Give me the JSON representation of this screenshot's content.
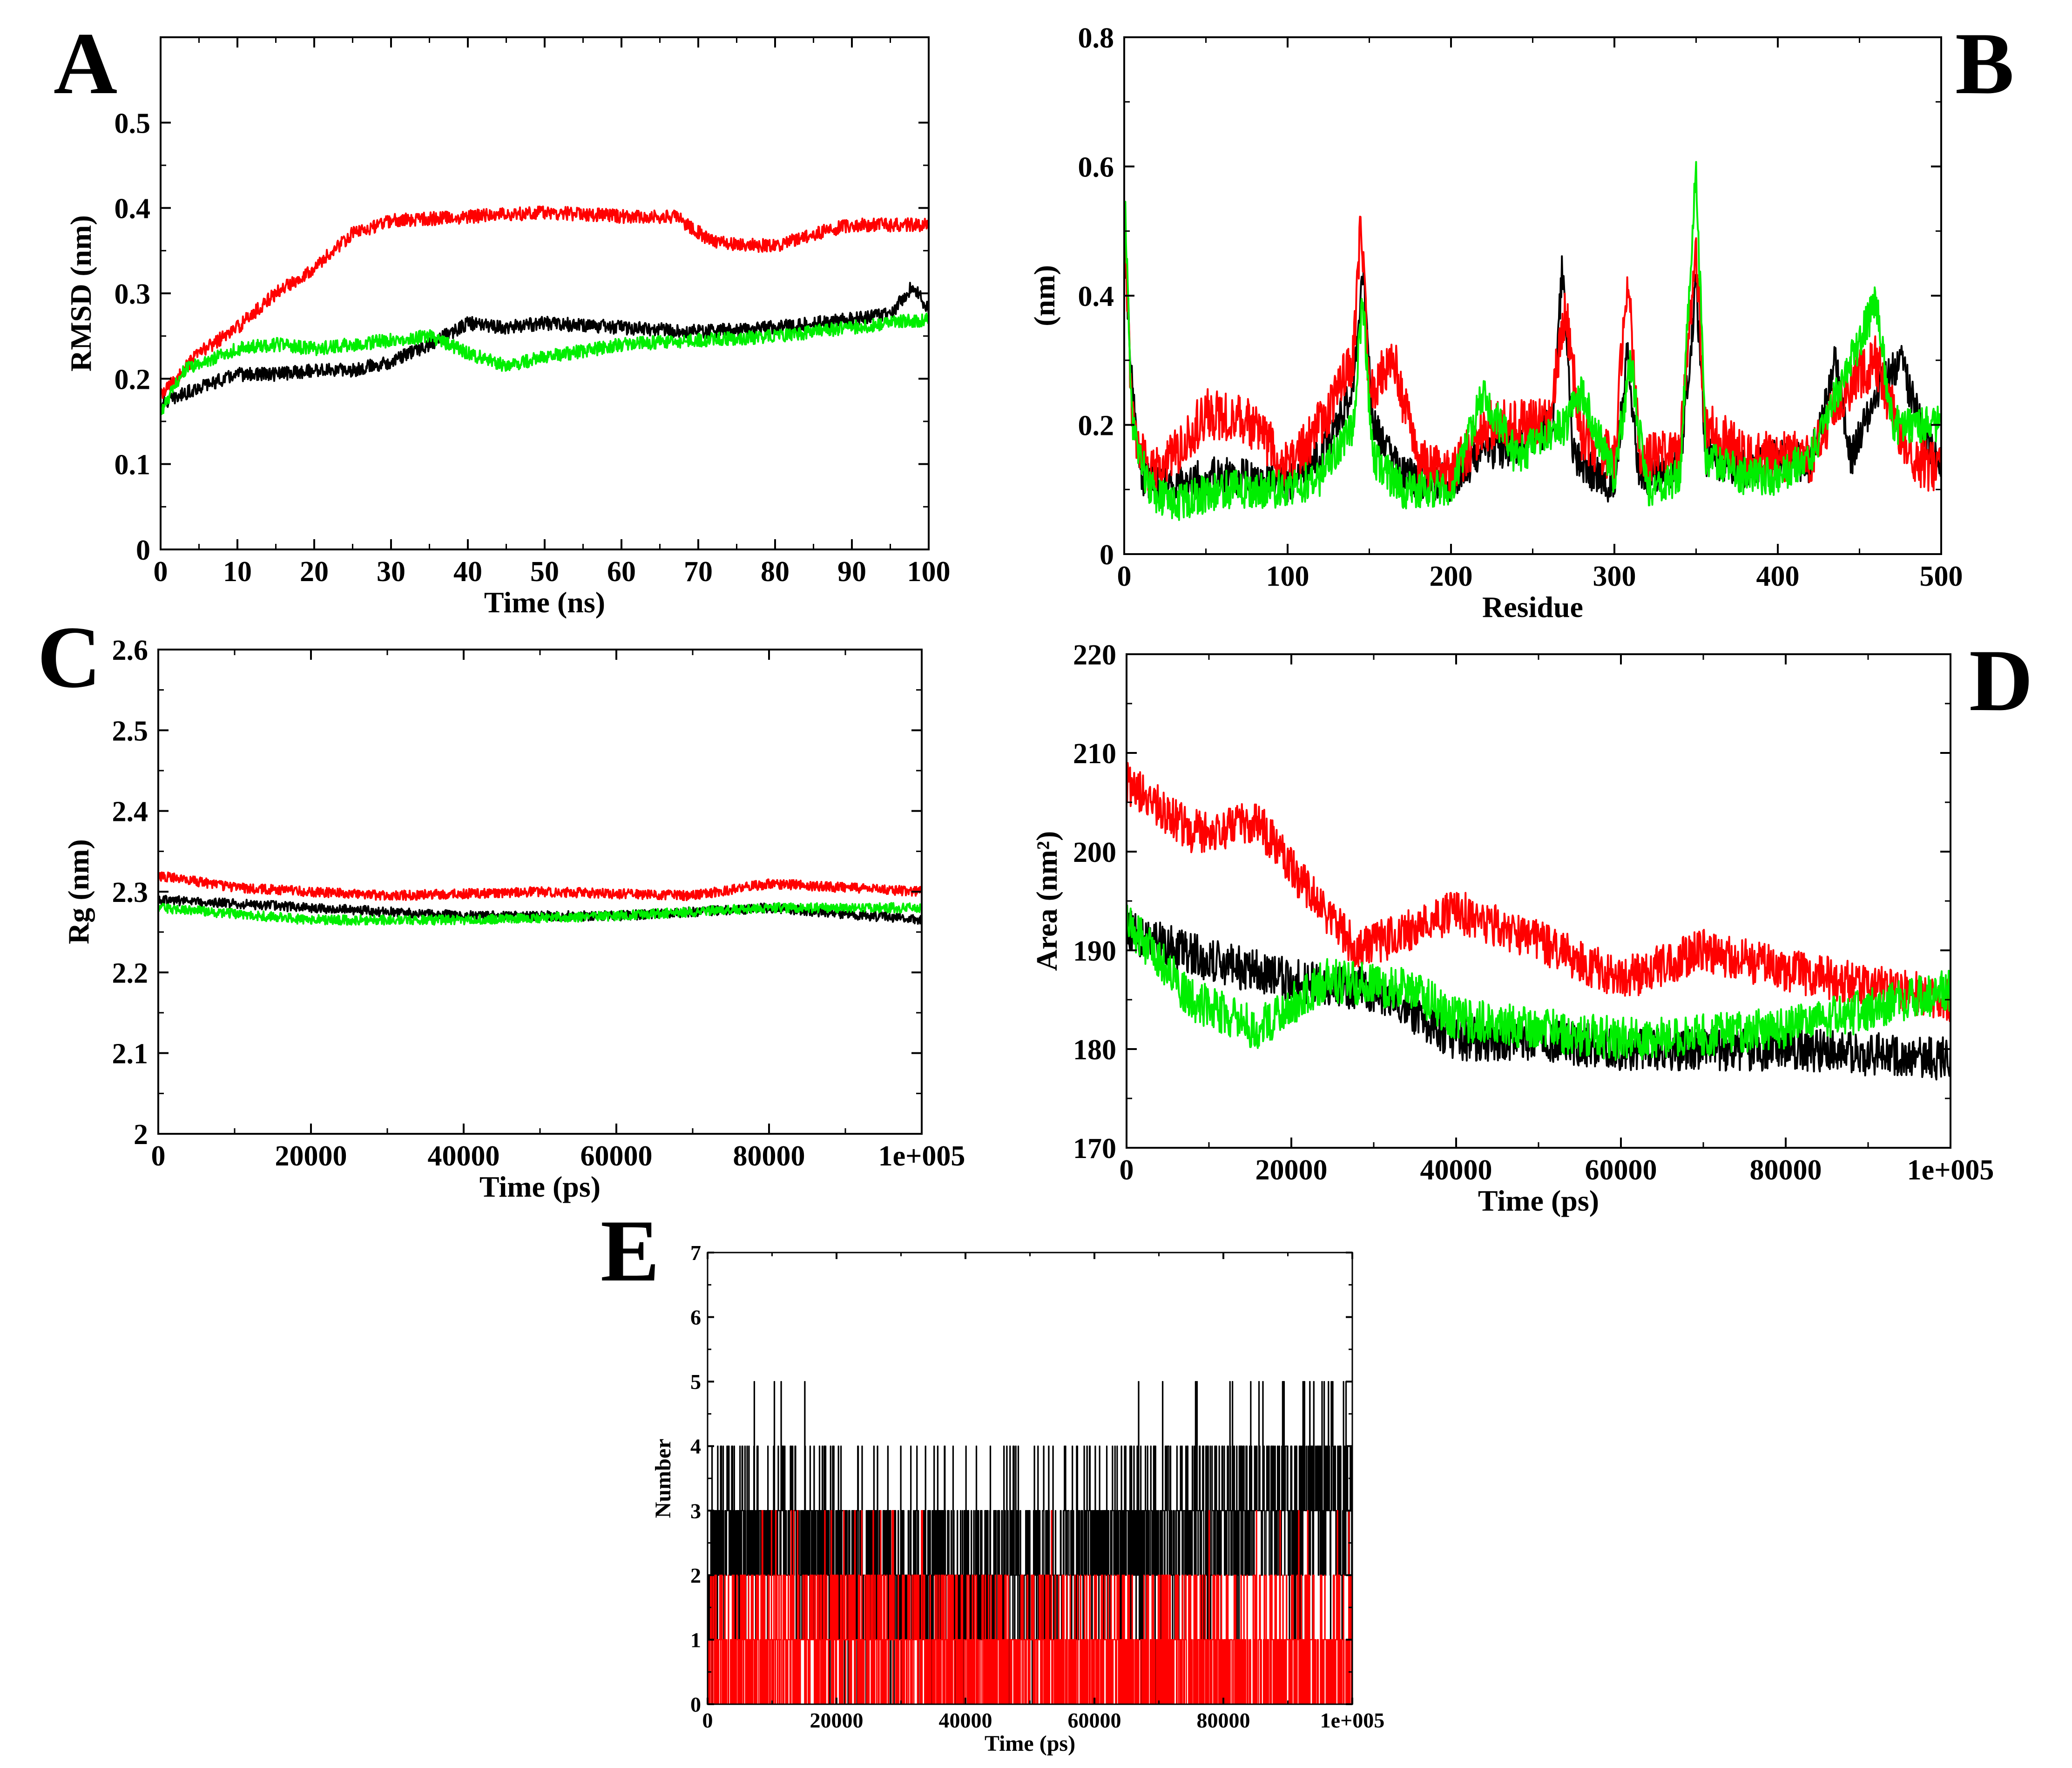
{
  "figure": {
    "colors": {
      "series1": "#000000",
      "series2": "#ff0000",
      "series3": "#00ee00"
    }
  },
  "chart_data": [
    {
      "panel": "A",
      "type": "line",
      "xlabel": "Time (ns)",
      "ylabel": "RMSD (nm)",
      "xlim": [
        0,
        100
      ],
      "ylim": [
        0,
        0.6
      ],
      "xticks": [
        0,
        10,
        20,
        30,
        40,
        50,
        60,
        70,
        80,
        90,
        100
      ],
      "xtick_labels": [
        "0",
        "10",
        "20",
        "30",
        "40",
        "50",
        "60",
        "70",
        "80",
        "90",
        "100"
      ],
      "yticks": [
        0,
        0.1,
        0.2,
        0.3,
        0.4,
        0.5
      ],
      "ytick_labels": [
        "0",
        "0.1",
        "0.2",
        "0.3",
        "0.4",
        "0.5"
      ],
      "series": [
        {
          "name": "black",
          "color": "#000000",
          "noise": 0.008,
          "points": [
            [
              0,
              0.17
            ],
            [
              5,
              0.19
            ],
            [
              10,
              0.205
            ],
            [
              15,
              0.205
            ],
            [
              20,
              0.21
            ],
            [
              25,
              0.21
            ],
            [
              30,
              0.22
            ],
            [
              35,
              0.24
            ],
            [
              40,
              0.265
            ],
            [
              45,
              0.26
            ],
            [
              50,
              0.265
            ],
            [
              60,
              0.26
            ],
            [
              70,
              0.255
            ],
            [
              80,
              0.26
            ],
            [
              90,
              0.27
            ],
            [
              95,
              0.275
            ],
            [
              98,
              0.31
            ],
            [
              100,
              0.28
            ]
          ]
        },
        {
          "name": "red",
          "color": "#ff0000",
          "noise": 0.008,
          "points": [
            [
              0,
              0.18
            ],
            [
              5,
              0.23
            ],
            [
              10,
              0.26
            ],
            [
              15,
              0.3
            ],
            [
              20,
              0.33
            ],
            [
              25,
              0.37
            ],
            [
              30,
              0.385
            ],
            [
              40,
              0.39
            ],
            [
              50,
              0.395
            ],
            [
              60,
              0.39
            ],
            [
              67,
              0.39
            ],
            [
              72,
              0.36
            ],
            [
              80,
              0.355
            ],
            [
              85,
              0.37
            ],
            [
              90,
              0.38
            ],
            [
              100,
              0.38
            ]
          ]
        },
        {
          "name": "green",
          "color": "#00ee00",
          "noise": 0.008,
          "points": [
            [
              0,
              0.16
            ],
            [
              3,
              0.21
            ],
            [
              10,
              0.235
            ],
            [
              15,
              0.24
            ],
            [
              20,
              0.235
            ],
            [
              30,
              0.245
            ],
            [
              35,
              0.25
            ],
            [
              40,
              0.23
            ],
            [
              45,
              0.215
            ],
            [
              50,
              0.225
            ],
            [
              60,
              0.24
            ],
            [
              70,
              0.245
            ],
            [
              80,
              0.25
            ],
            [
              90,
              0.26
            ],
            [
              100,
              0.27
            ]
          ]
        }
      ]
    },
    {
      "panel": "B",
      "type": "line",
      "xlabel": "Residue",
      "ylabel": "(nm)",
      "xlim": [
        0,
        500
      ],
      "ylim": [
        0,
        0.8
      ],
      "xticks": [
        0,
        100,
        200,
        300,
        400,
        500
      ],
      "xtick_labels": [
        "0",
        "100",
        "200",
        "300",
        "400",
        "500"
      ],
      "yticks": [
        0,
        0.2,
        0.4,
        0.6,
        0.8
      ],
      "ytick_labels": [
        "0",
        "0.2",
        "0.4",
        "0.6",
        "0.8"
      ],
      "series": [
        {
          "name": "black",
          "color": "#000000",
          "noise": 0.03,
          "points": [
            [
              0,
              0.5
            ],
            [
              5,
              0.25
            ],
            [
              10,
              0.12
            ],
            [
              30,
              0.1
            ],
            [
              50,
              0.12
            ],
            [
              80,
              0.12
            ],
            [
              100,
              0.11
            ],
            [
              120,
              0.15
            ],
            [
              140,
              0.25
            ],
            [
              146,
              0.45
            ],
            [
              152,
              0.2
            ],
            [
              170,
              0.12
            ],
            [
              200,
              0.11
            ],
            [
              215,
              0.15
            ],
            [
              240,
              0.17
            ],
            [
              262,
              0.2
            ],
            [
              268,
              0.44
            ],
            [
              275,
              0.15
            ],
            [
              300,
              0.1
            ],
            [
              308,
              0.32
            ],
            [
              315,
              0.12
            ],
            [
              340,
              0.13
            ],
            [
              350,
              0.42
            ],
            [
              356,
              0.15
            ],
            [
              380,
              0.13
            ],
            [
              400,
              0.15
            ],
            [
              420,
              0.14
            ],
            [
              435,
              0.3
            ],
            [
              445,
              0.15
            ],
            [
              460,
              0.25
            ],
            [
              475,
              0.3
            ],
            [
              490,
              0.18
            ],
            [
              500,
              0.15
            ]
          ]
        },
        {
          "name": "red",
          "color": "#ff0000",
          "noise": 0.04,
          "points": [
            [
              0,
              0.5
            ],
            [
              5,
              0.2
            ],
            [
              15,
              0.12
            ],
            [
              30,
              0.15
            ],
            [
              50,
              0.22
            ],
            [
              80,
              0.2
            ],
            [
              100,
              0.13
            ],
            [
              120,
              0.2
            ],
            [
              140,
              0.3
            ],
            [
              145,
              0.52
            ],
            [
              150,
              0.25
            ],
            [
              165,
              0.3
            ],
            [
              180,
              0.14
            ],
            [
              200,
              0.12
            ],
            [
              220,
              0.2
            ],
            [
              260,
              0.2
            ],
            [
              270,
              0.38
            ],
            [
              280,
              0.18
            ],
            [
              300,
              0.15
            ],
            [
              308,
              0.43
            ],
            [
              316,
              0.15
            ],
            [
              340,
              0.15
            ],
            [
              350,
              0.48
            ],
            [
              355,
              0.2
            ],
            [
              380,
              0.15
            ],
            [
              400,
              0.15
            ],
            [
              420,
              0.15
            ],
            [
              440,
              0.25
            ],
            [
              460,
              0.3
            ],
            [
              480,
              0.15
            ],
            [
              500,
              0.13
            ]
          ]
        },
        {
          "name": "green",
          "color": "#00ee00",
          "noise": 0.03,
          "points": [
            [
              0,
              0.57
            ],
            [
              5,
              0.2
            ],
            [
              15,
              0.1
            ],
            [
              30,
              0.08
            ],
            [
              60,
              0.1
            ],
            [
              100,
              0.1
            ],
            [
              120,
              0.12
            ],
            [
              140,
              0.2
            ],
            [
              146,
              0.4
            ],
            [
              152,
              0.15
            ],
            [
              170,
              0.1
            ],
            [
              200,
              0.1
            ],
            [
              220,
              0.25
            ],
            [
              240,
              0.15
            ],
            [
              270,
              0.2
            ],
            [
              280,
              0.25
            ],
            [
              300,
              0.12
            ],
            [
              310,
              0.3
            ],
            [
              320,
              0.1
            ],
            [
              340,
              0.12
            ],
            [
              350,
              0.6
            ],
            [
              356,
              0.15
            ],
            [
              380,
              0.12
            ],
            [
              400,
              0.12
            ],
            [
              420,
              0.15
            ],
            [
              460,
              0.39
            ],
            [
              470,
              0.2
            ],
            [
              500,
              0.2
            ]
          ]
        }
      ]
    },
    {
      "panel": "C",
      "type": "line",
      "xlabel": "Time (ps)",
      "ylabel": "Rg (nm)",
      "xlim": [
        0,
        100000
      ],
      "ylim": [
        2.0,
        2.6
      ],
      "xticks": [
        0,
        20000,
        40000,
        60000,
        80000,
        100000
      ],
      "xtick_labels": [
        "0",
        "20000",
        "40000",
        "60000",
        "80000",
        "1e+005"
      ],
      "yticks": [
        2.0,
        2.1,
        2.2,
        2.3,
        2.4,
        2.5,
        2.6
      ],
      "ytick_labels": [
        "2",
        "2.1",
        "2.2",
        "2.3",
        "2.4",
        "2.5",
        "2.6"
      ],
      "series": [
        {
          "name": "black",
          "color": "#000000",
          "noise": 0.006,
          "points": [
            [
              0,
              2.29
            ],
            [
              20000,
              2.28
            ],
            [
              40000,
              2.27
            ],
            [
              60000,
              2.27
            ],
            [
              80000,
              2.28
            ],
            [
              100000,
              2.265
            ]
          ]
        },
        {
          "name": "red",
          "color": "#ff0000",
          "noise": 0.006,
          "points": [
            [
              0,
              2.32
            ],
            [
              10000,
              2.305
            ],
            [
              30000,
              2.295
            ],
            [
              50000,
              2.3
            ],
            [
              70000,
              2.295
            ],
            [
              80000,
              2.31
            ],
            [
              100000,
              2.3
            ]
          ]
        },
        {
          "name": "green",
          "color": "#00ee00",
          "noise": 0.006,
          "points": [
            [
              0,
              2.28
            ],
            [
              20000,
              2.265
            ],
            [
              40000,
              2.265
            ],
            [
              60000,
              2.27
            ],
            [
              80000,
              2.28
            ],
            [
              100000,
              2.28
            ]
          ]
        }
      ]
    },
    {
      "panel": "D",
      "type": "line",
      "xlabel": "Time (ps)",
      "ylabel": "Area (nm²)",
      "xlim": [
        0,
        100000
      ],
      "ylim": [
        170,
        220
      ],
      "xticks": [
        0,
        20000,
        40000,
        60000,
        80000,
        100000
      ],
      "xtick_labels": [
        "0",
        "20000",
        "40000",
        "60000",
        "80000",
        "1e+005"
      ],
      "yticks": [
        170,
        180,
        190,
        200,
        210,
        220
      ],
      "ytick_labels": [
        "170",
        "180",
        "190",
        "200",
        "210",
        "220"
      ],
      "series": [
        {
          "name": "black",
          "color": "#000000",
          "noise": 2.2,
          "points": [
            [
              0,
              192
            ],
            [
              10000,
              189
            ],
            [
              20000,
              187
            ],
            [
              30000,
              186
            ],
            [
              40000,
              181
            ],
            [
              50000,
              181
            ],
            [
              60000,
              180
            ],
            [
              80000,
              180
            ],
            [
              100000,
              179
            ]
          ]
        },
        {
          "name": "red",
          "color": "#ff0000",
          "noise": 2.2,
          "points": [
            [
              0,
              207
            ],
            [
              8000,
              202
            ],
            [
              16000,
              203
            ],
            [
              22000,
              196
            ],
            [
              28000,
              190
            ],
            [
              40000,
              194
            ],
            [
              50000,
              191
            ],
            [
              60000,
              187
            ],
            [
              70000,
              190
            ],
            [
              80000,
              188
            ],
            [
              100000,
              185
            ]
          ]
        },
        {
          "name": "green",
          "color": "#00ee00",
          "noise": 2.2,
          "points": [
            [
              0,
              193
            ],
            [
              8000,
              185
            ],
            [
              16000,
              182
            ],
            [
              24000,
              187
            ],
            [
              35000,
              186
            ],
            [
              40000,
              183
            ],
            [
              60000,
              181
            ],
            [
              80000,
              182
            ],
            [
              100000,
              186
            ]
          ]
        }
      ]
    },
    {
      "panel": "E",
      "type": "line",
      "xlabel": "Time (ps)",
      "ylabel": "Number",
      "xlim": [
        0,
        100000
      ],
      "ylim": [
        0,
        7
      ],
      "xticks": [
        0,
        20000,
        40000,
        60000,
        80000,
        100000
      ],
      "xtick_labels": [
        "0",
        "20000",
        "40000",
        "60000",
        "80000",
        "1e+005"
      ],
      "yticks": [
        0,
        1,
        2,
        3,
        4,
        5,
        6,
        7
      ],
      "ytick_labels": [
        "0",
        "1",
        "2",
        "3",
        "4",
        "5",
        "6",
        "7"
      ],
      "series": [
        {
          "name": "black",
          "color": "#000000",
          "discrete": true,
          "segments": [
            [
              0,
              2
            ],
            [
              10000,
              3
            ],
            [
              25000,
              2
            ],
            [
              48000,
              2
            ],
            [
              88000,
              3
            ],
            [
              100000,
              3
            ]
          ]
        },
        {
          "name": "red",
          "color": "#ff0000",
          "discrete": true,
          "segments": [
            [
              0,
              0.5
            ],
            [
              15000,
              1
            ],
            [
              30000,
              1
            ],
            [
              40000,
              0.5
            ],
            [
              60000,
              0.5
            ],
            [
              100000,
              0.5
            ]
          ]
        }
      ]
    }
  ]
}
